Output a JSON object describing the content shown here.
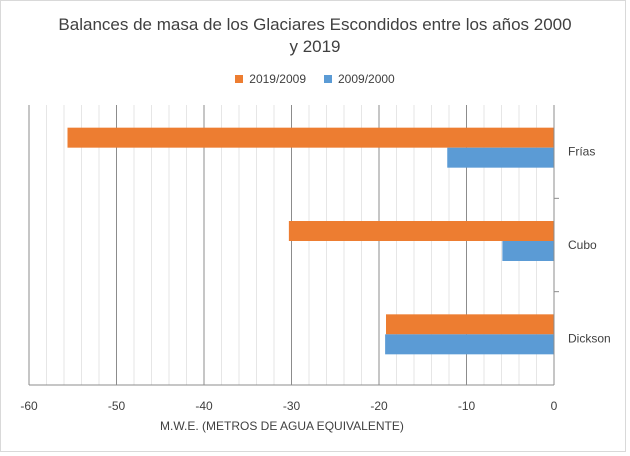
{
  "chart_data": {
    "type": "bar",
    "orientation": "horizontal",
    "title": "Balances de masa de los Glaciares Escondidos entre los años 2000 y 2019",
    "title_lines": [
      "Balances de masa de los Glaciares Escondidos entre los años 2000",
      "y 2019"
    ],
    "xlabel": "M.W.E. (METROS DE AGUA EQUIVALENTE)",
    "ylabel": "",
    "xlim": [
      -60,
      0
    ],
    "x_ticks": [
      -60,
      -50,
      -40,
      -30,
      -20,
      -10,
      0
    ],
    "categories": [
      "Frías",
      "Cubo",
      "Dickson"
    ],
    "series": [
      {
        "name": "2019/2009",
        "color": "#ED7D31",
        "values": [
          -55.6,
          -30.3,
          -19.2
        ]
      },
      {
        "name": "2009/2000",
        "color": "#5B9BD5",
        "values": [
          -12.2,
          -5.9,
          -19.3
        ]
      }
    ],
    "legend_position": "top",
    "gridlines": "vertical"
  }
}
